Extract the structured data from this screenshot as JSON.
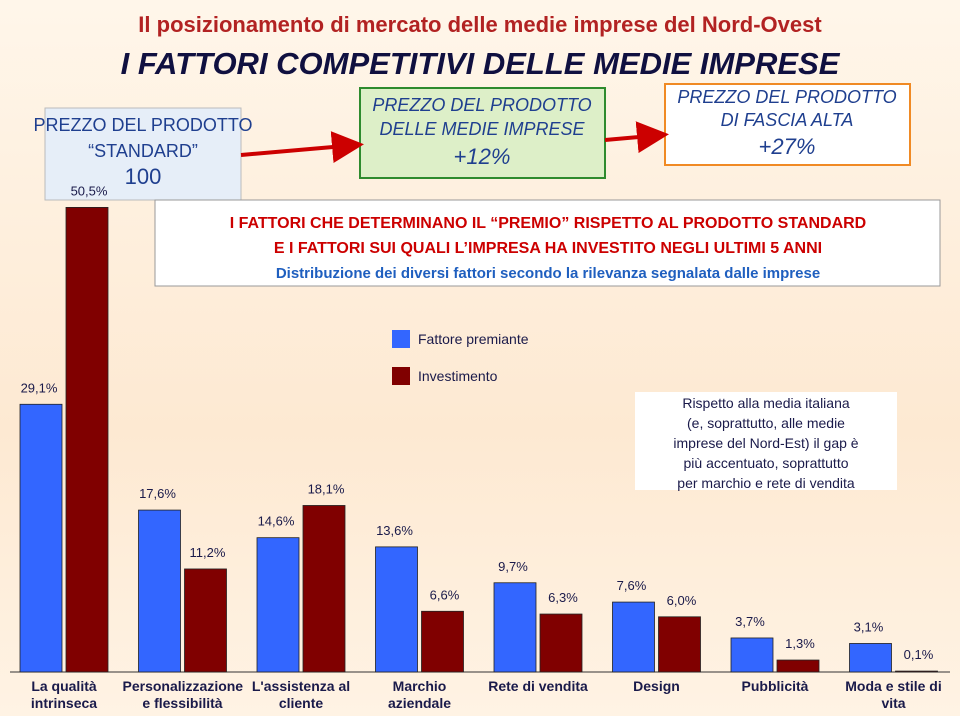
{
  "chart_data": {
    "type": "bar",
    "title": "Il posizionamento di mercato delle medie imprese del Nord-Ovest",
    "subtitle": "I FATTORI COMPETITIVI DELLE MEDIE IMPRESE",
    "boxes": [
      [
        "PREZZO DEL PRODOTTO",
        "“STANDARD”",
        "100"
      ],
      [
        "PREZZO DEL PRODOTTO",
        "DELLE MEDIE IMPRESE",
        "+12%"
      ],
      [
        "PREZZO DEL PRODOTTO",
        "DI FASCIA ALTA",
        "+27%"
      ]
    ],
    "header": [
      "I FATTORI CHE DETERMINANO IL “PREMIO” RISPETTO AL PRODOTTO STANDARD",
      "E I FATTORI SUI QUALI L’IMPRESA HA INVESTITO NEGLI ULTIMI 5 ANNI",
      "Distribuzione dei diversi fattori secondo la rilevanza segnalata dalle imprese"
    ],
    "note": [
      "Rispetto alla media italiana",
      "(e, soprattutto, alle medie",
      "imprese del Nord-Est) il gap è",
      "più accentuato, soprattutto",
      "per marchio e rete di vendita"
    ],
    "categories": [
      "La qualità intrinseca",
      "Personalizzazione e flessibilità",
      "L'assistenza al cliente",
      "Marchio aziendale",
      "Rete di vendita",
      "Design",
      "Pubblicità",
      "Moda e stile di vita"
    ],
    "series": [
      {
        "name": "Fattore premiante",
        "color": "#3366ff",
        "values": [
          29.1,
          17.6,
          14.6,
          13.6,
          9.7,
          7.6,
          3.7,
          3.1
        ],
        "value_labels": [
          "29,1%",
          "17,6%",
          "14,6%",
          "13,6%",
          "9,7%",
          "7,6%",
          "3,7%",
          "3,1%"
        ]
      },
      {
        "name": "Investimento",
        "color": "#800000",
        "values": [
          50.5,
          11.2,
          18.1,
          6.6,
          6.3,
          6.0,
          1.3,
          0.1
        ],
        "value_labels": [
          "50,5%",
          "11,2%",
          "18,1%",
          "6,6%",
          "6,3%",
          "6,0%",
          "1,3%",
          "0,1%"
        ]
      }
    ]
  }
}
